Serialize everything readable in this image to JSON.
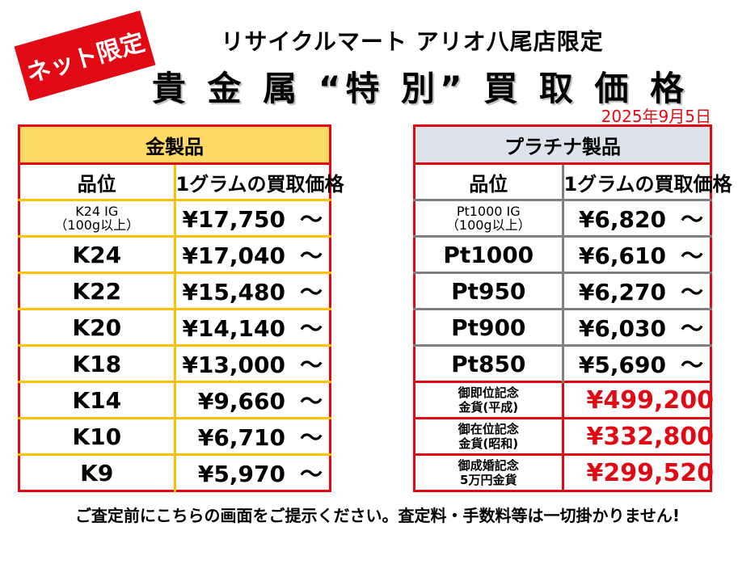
{
  "badge": "ネット限定",
  "store": "リサイクルマート アリオ八尾店限定",
  "headline": "貴 金 属 “特 別” 買 取 価 格",
  "date": "2025年9月5日",
  "gold": {
    "category": "金製品",
    "col_grade": "品位",
    "col_price": "1グラムの買取価格",
    "rows": [
      {
        "grade": "K24 IG",
        "grade_sub": "（100g以上）",
        "price": "¥17,750",
        "tilde": "～"
      },
      {
        "grade": "K24",
        "price": "¥17,040",
        "tilde": "～"
      },
      {
        "grade": "K22",
        "price": "¥15,480",
        "tilde": "～"
      },
      {
        "grade": "K20",
        "price": "¥14,140",
        "tilde": "～"
      },
      {
        "grade": "K18",
        "price": "¥13,000",
        "tilde": "～"
      },
      {
        "grade": "K14",
        "price": "¥9,660",
        "tilde": "～"
      },
      {
        "grade": "K10",
        "price": "¥6,710",
        "tilde": "～"
      },
      {
        "grade": "K9",
        "price": "¥5,970",
        "tilde": "～"
      }
    ]
  },
  "platinum": {
    "category": "プラチナ製品",
    "col_grade": "品位",
    "col_price": "1グラムの買取価格",
    "rows": [
      {
        "grade": "Pt1000 IG",
        "grade_sub": "（100g以上）",
        "price": "¥6,820",
        "tilde": "～"
      },
      {
        "grade": "Pt1000",
        "price": "¥6,610",
        "tilde": "～"
      },
      {
        "grade": "Pt950",
        "price": "¥6,270",
        "tilde": "～"
      },
      {
        "grade": "Pt900",
        "price": "¥6,030",
        "tilde": "～"
      },
      {
        "grade": "Pt850",
        "price": "¥5,690",
        "tilde": "～"
      }
    ],
    "coins": [
      {
        "line1": "御即位記念",
        "line2": "金貨(平成)",
        "price": "¥499,200"
      },
      {
        "line1": "御在位記念",
        "line2": "金貨(昭和)",
        "price": "¥332,800"
      },
      {
        "line1": "御成婚記念",
        "line2": "5万円金貨",
        "price": "¥299,520"
      }
    ]
  },
  "footer": "ご査定前にこちらの画面をご提示ください。査定料・手数料等は一切掛かりません!",
  "colors": {
    "red": "#e10a14",
    "gold_header": "#ffd966",
    "gold_border": "#ffc000",
    "plat_header": "#dde3ea",
    "plat_border": "#808080"
  }
}
